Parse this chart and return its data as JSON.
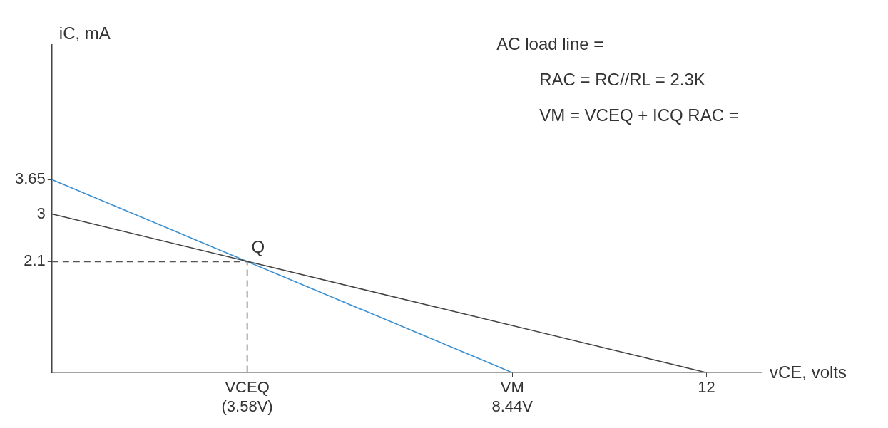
{
  "chart_data": {
    "type": "line",
    "xlabel": "vCE, volts",
    "ylabel": "iC, mA",
    "xlim": [
      0,
      13
    ],
    "ylim": [
      0,
      6.2
    ],
    "xticks": [
      {
        "value": 3.58,
        "label": "VCEQ\n(3.58V)"
      },
      {
        "value": 8.44,
        "label": "VM\n8.44V"
      },
      12
    ],
    "yticks": [
      2.1,
      3,
      3.65
    ],
    "series": [
      {
        "color": "#444444",
        "x": [
          0,
          12
        ],
        "values": [
          3,
          0
        ]
      },
      {
        "color": "#3a8fd0",
        "x": [
          0,
          8.44
        ],
        "values": [
          3.65,
          0
        ]
      },
      {
        "color": "#555555",
        "x": [
          0,
          3.58,
          3.58
        ],
        "values": [
          2.1,
          2.1,
          0
        ],
        "line_style": "dashed"
      }
    ],
    "annotations": [
      {
        "text": "Q",
        "x": 3.58,
        "y": 2.1
      },
      "AC load line =",
      "RAC = RC//RL = 2.3K",
      "VM = VCEQ + ICQ RAC ="
    ],
    "grid": false,
    "legend": false,
    "marker": "none",
    "line_style": "solid"
  }
}
